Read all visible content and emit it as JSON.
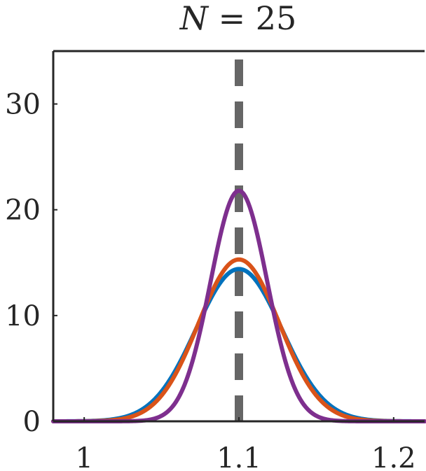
{
  "chart_data": {
    "type": "line",
    "title_var": "N",
    "title_rest": " = 25",
    "xlim": [
      0.98,
      1.22
    ],
    "ylim": [
      0,
      35
    ],
    "xticks": [
      1,
      1.1,
      1.2
    ],
    "xtick_labels": [
      "1",
      "1.1",
      "1.2"
    ],
    "yticks": [
      0,
      10,
      20,
      30
    ],
    "ytick_labels": [
      "0",
      "10",
      "20",
      "30"
    ],
    "reference_line": {
      "x": 1.1,
      "style": "dashed",
      "color": "#666666"
    },
    "series": [
      {
        "color": "#0072BD",
        "peak_x": 1.1,
        "peak_y": 14.4,
        "sd": 0.0277
      },
      {
        "color": "#D95319",
        "peak_x": 1.1,
        "peak_y": 15.3,
        "sd": 0.0261
      },
      {
        "color": "#7E2F8E",
        "peak_x": 1.1,
        "peak_y": 21.8,
        "sd": 0.0183
      }
    ]
  }
}
